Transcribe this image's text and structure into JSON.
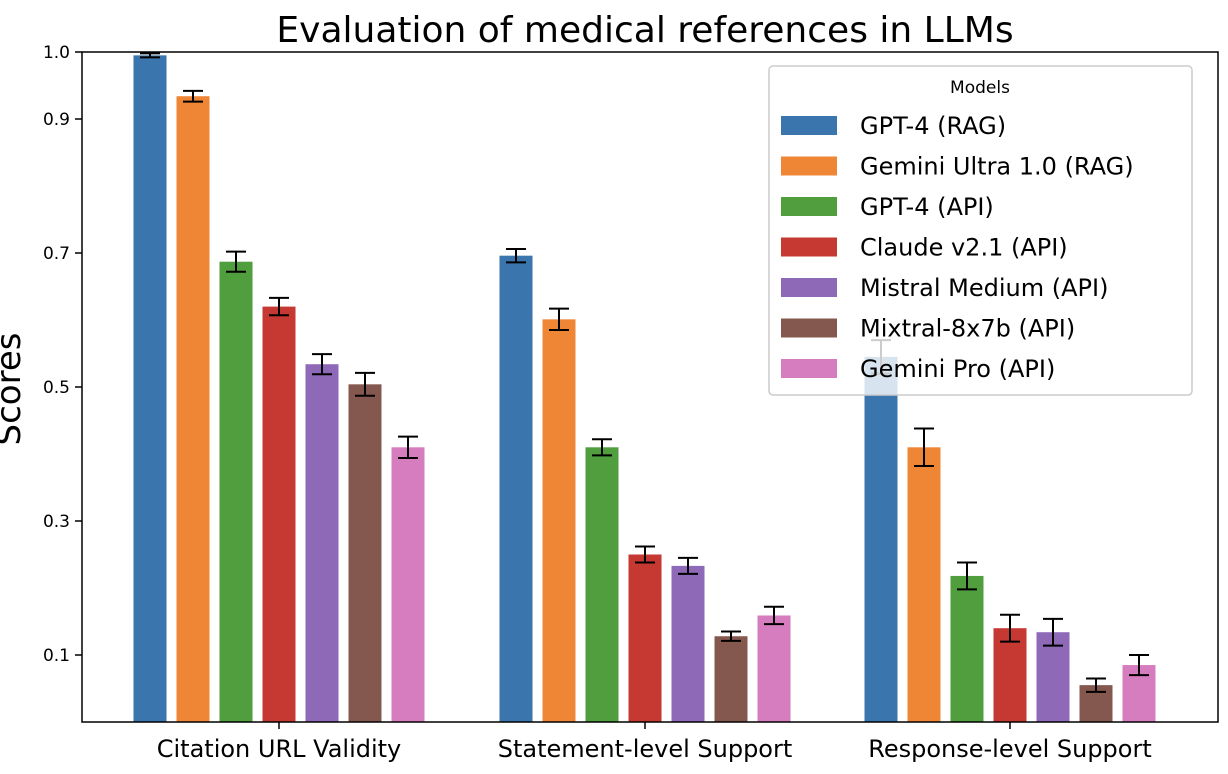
{
  "chart_data": {
    "type": "bar",
    "title": "Evaluation of medical references in LLMs",
    "xlabel": "",
    "ylabel": "Scores",
    "ylim": [
      0.0,
      1.0
    ],
    "yticks": [
      "0.1",
      "0.3",
      "0.5",
      "0.7",
      "0.9",
      "1.0"
    ],
    "grid": false,
    "legend": {
      "title": "Models",
      "position": "top-right"
    },
    "categories": [
      "Citation URL Validity",
      "Statement-level Support",
      "Response-level Support"
    ],
    "series": [
      {
        "name": "GPT-4 (RAG)",
        "color": "#3a75ae",
        "values": [
          0.995,
          0.696,
          0.545
        ],
        "errors": [
          0.003,
          0.01,
          0.025
        ]
      },
      {
        "name": "Gemini Ultra 1.0 (RAG)",
        "color": "#ef8636",
        "values": [
          0.934,
          0.601,
          0.41
        ],
        "errors": [
          0.008,
          0.016,
          0.028
        ]
      },
      {
        "name": "GPT-4 (API)",
        "color": "#519e3e",
        "values": [
          0.687,
          0.41,
          0.218
        ],
        "errors": [
          0.015,
          0.012,
          0.02
        ]
      },
      {
        "name": "Claude v2.1 (API)",
        "color": "#c53932",
        "values": [
          0.62,
          0.25,
          0.14
        ],
        "errors": [
          0.013,
          0.012,
          0.02
        ]
      },
      {
        "name": "Mistral Medium (API)",
        "color": "#8d69b8",
        "values": [
          0.534,
          0.233,
          0.134
        ],
        "errors": [
          0.015,
          0.012,
          0.02
        ]
      },
      {
        "name": "Mixtral-8x7b (API)",
        "color": "#84584e",
        "values": [
          0.504,
          0.128,
          0.055
        ],
        "errors": [
          0.017,
          0.007,
          0.01
        ]
      },
      {
        "name": "Gemini Pro (API)",
        "color": "#d57dbe",
        "values": [
          0.41,
          0.159,
          0.085
        ],
        "errors": [
          0.016,
          0.013,
          0.015
        ]
      }
    ]
  }
}
